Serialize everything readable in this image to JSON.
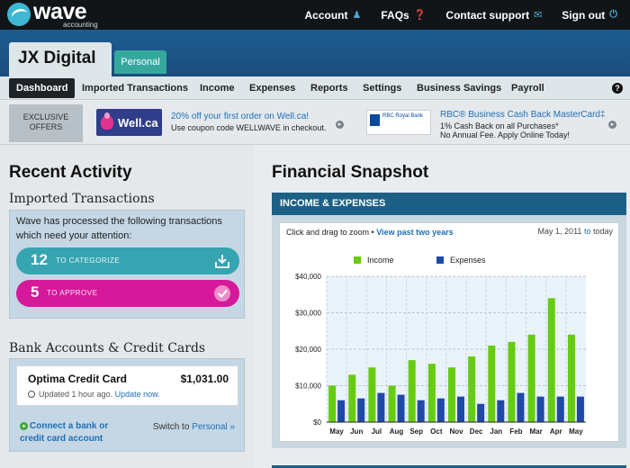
{
  "brand": {
    "name": "wave",
    "sub": "accounting"
  },
  "topnav": [
    {
      "label": "Account",
      "icon": "person-icon"
    },
    {
      "label": "FAQs",
      "icon": "question-icon"
    },
    {
      "label": "Contact support",
      "icon": "envelope-icon"
    },
    {
      "label": "Sign out",
      "icon": "power-icon"
    }
  ],
  "business": {
    "name": "JX Digital",
    "personal_tab": "Personal"
  },
  "mainnav": [
    "Dashboard",
    "Imported Transactions",
    "Income",
    "Expenses",
    "Reports",
    "Settings",
    "Business Savings",
    "Payroll"
  ],
  "offers": {
    "label": "EXCLUSIVE OFFERS",
    "wellca": {
      "logo_text": "Well.ca",
      "title": "20% off your first order on Well.ca!",
      "sub": "Use coupon code WELLWAVE in checkout."
    },
    "rbc": {
      "logo_text": "RBC Royal Bank",
      "title": "RBC® Business Cash Back MasterCard‡",
      "sub1": "1% Cash Back on all Purchases*",
      "sub2": "No Annual Fee. Apply Online Today!"
    }
  },
  "recent": {
    "title": "Recent Activity",
    "imported_title": "Imported Transactions",
    "message": "Wave has processed the following transactions which need your attention:",
    "categorize": {
      "count": "12",
      "label": "TO CATEGORIZE"
    },
    "approve": {
      "count": "5",
      "label": "TO APPROVE"
    },
    "bank_title": "Bank Accounts & Credit Cards",
    "card": {
      "name": "Optima Credit Card",
      "amount": "$1,031.00",
      "updated": "Updated 1 hour ago.",
      "update_link": "Update now."
    },
    "connect_line1": "Connect a bank or",
    "connect_line2": "credit card account",
    "switch_text": "Switch to",
    "switch_link": "Personal »"
  },
  "snapshot": {
    "title": "Financial Snapshot",
    "panel_title": "INCOME & EXPENSES",
    "hint": "Click and drag to zoom •",
    "hint_link": "View past two years",
    "date_from": "May 1, 2011",
    "date_to_word": "to",
    "date_to": "today"
  },
  "colors": {
    "income": "#66cc11",
    "expenses": "#1f49a8",
    "pill_teal": "#36a5b1",
    "pill_magenta": "#d6189a"
  },
  "chart_data": {
    "type": "bar",
    "categories": [
      "May",
      "Jun",
      "Jul",
      "Aug",
      "Sep",
      "Oct",
      "Nov",
      "Dec",
      "Jan",
      "Feb",
      "Mar",
      "Apr",
      "May"
    ],
    "series": [
      {
        "name": "Income",
        "values": [
          10000,
          13000,
          15000,
          10000,
          17000,
          16000,
          15000,
          18000,
          21000,
          22000,
          24000,
          34000,
          24000
        ]
      },
      {
        "name": "Expenses",
        "values": [
          6000,
          6500,
          8000,
          7500,
          6000,
          6500,
          7000,
          5000,
          6000,
          8000,
          7000,
          7000,
          7000
        ]
      }
    ],
    "yticks": [
      "$0",
      "$10,000",
      "$20,000",
      "$30,000",
      "$40,000"
    ],
    "ylim": [
      0,
      40000
    ],
    "legend_position": "top",
    "grid": true
  }
}
